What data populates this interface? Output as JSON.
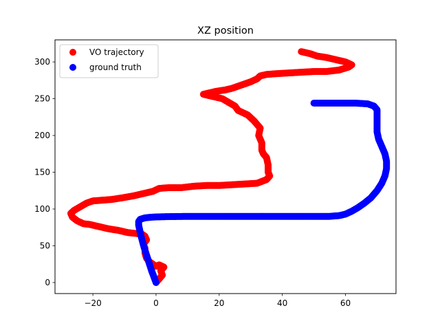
{
  "chart_data": {
    "type": "scatter",
    "title": "XZ position",
    "xlabel": "",
    "ylabel": "",
    "xlim": [
      -32,
      76
    ],
    "ylim": [
      -15,
      330
    ],
    "xticks": [
      -20,
      0,
      20,
      40,
      60
    ],
    "yticks": [
      0,
      50,
      100,
      150,
      200,
      250,
      300
    ],
    "grid": false,
    "legend_position": "top-left",
    "series": [
      {
        "name": "VO trajectory",
        "color": "#ff0000",
        "points": [
          [
            0,
            0
          ],
          [
            1,
            5
          ],
          [
            2,
            10
          ],
          [
            1.5,
            16
          ],
          [
            2.5,
            21
          ],
          [
            1,
            24
          ],
          [
            0,
            22
          ],
          [
            -1,
            25
          ],
          [
            -2,
            28
          ],
          [
            -3,
            33
          ],
          [
            -3.5,
            40
          ],
          [
            -3.5,
            47
          ],
          [
            -4,
            52
          ],
          [
            -3,
            58
          ],
          [
            -3.5,
            63
          ],
          [
            -4.5,
            66
          ],
          [
            -7,
            67
          ],
          [
            -9,
            68
          ],
          [
            -12,
            71
          ],
          [
            -15,
            73
          ],
          [
            -18,
            76
          ],
          [
            -21,
            79
          ],
          [
            -23,
            80
          ],
          [
            -25,
            84
          ],
          [
            -26.5,
            89
          ],
          [
            -27,
            94
          ],
          [
            -26,
            98
          ],
          [
            -24,
            103
          ],
          [
            -22,
            108
          ],
          [
            -20,
            111
          ],
          [
            -17,
            112
          ],
          [
            -14,
            113
          ],
          [
            -11,
            115
          ],
          [
            -7,
            118
          ],
          [
            -4,
            121
          ],
          [
            -1,
            124
          ],
          [
            1,
            128
          ],
          [
            4,
            129
          ],
          [
            8,
            129
          ],
          [
            12,
            131
          ],
          [
            16,
            132
          ],
          [
            20,
            132
          ],
          [
            24,
            133
          ],
          [
            28,
            134
          ],
          [
            32,
            135
          ],
          [
            35,
            140
          ],
          [
            36,
            145
          ],
          [
            35.5,
            150
          ],
          [
            35.5,
            160
          ],
          [
            35,
            170
          ],
          [
            34,
            175
          ],
          [
            33.5,
            180
          ],
          [
            33.5,
            190
          ],
          [
            33,
            195
          ],
          [
            32.5,
            200
          ],
          [
            33,
            210
          ],
          [
            32,
            215
          ],
          [
            31,
            220
          ],
          [
            29,
            228
          ],
          [
            26,
            234
          ],
          [
            25,
            240
          ],
          [
            23,
            245
          ],
          [
            21,
            250
          ],
          [
            19,
            252
          ],
          [
            17,
            254
          ],
          [
            15,
            256
          ],
          [
            17,
            258
          ],
          [
            19,
            260
          ],
          [
            22,
            262
          ],
          [
            24,
            264
          ],
          [
            26,
            267
          ],
          [
            28,
            270
          ],
          [
            30,
            273
          ],
          [
            32,
            277
          ],
          [
            33,
            281
          ],
          [
            35,
            283
          ],
          [
            38,
            284
          ],
          [
            42,
            285
          ],
          [
            46,
            286
          ],
          [
            50,
            287
          ],
          [
            54,
            287
          ],
          [
            58,
            289
          ],
          [
            61,
            293
          ],
          [
            62,
            296
          ],
          [
            60,
            300
          ],
          [
            57,
            303
          ],
          [
            54,
            306
          ],
          [
            51,
            308
          ],
          [
            49,
            311
          ],
          [
            47,
            313
          ],
          [
            46,
            314
          ]
        ]
      },
      {
        "name": "ground truth",
        "color": "#0000ff",
        "points": [
          [
            0,
            0
          ],
          [
            -0.7,
            8
          ],
          [
            -1.4,
            16
          ],
          [
            -2,
            24
          ],
          [
            -2.6,
            32
          ],
          [
            -3.2,
            40
          ],
          [
            -3.8,
            48
          ],
          [
            -4.3,
            56
          ],
          [
            -4.8,
            64
          ],
          [
            -5.2,
            72
          ],
          [
            -5.5,
            78
          ],
          [
            -5.5,
            83
          ],
          [
            -5,
            86
          ],
          [
            -3.5,
            88
          ],
          [
            -1,
            89
          ],
          [
            2,
            89.5
          ],
          [
            10,
            90
          ],
          [
            20,
            90
          ],
          [
            30,
            90
          ],
          [
            40,
            90
          ],
          [
            50,
            90
          ],
          [
            55,
            90
          ],
          [
            58,
            91
          ],
          [
            60,
            93
          ],
          [
            62,
            97
          ],
          [
            64,
            102
          ],
          [
            66,
            108
          ],
          [
            68,
            115
          ],
          [
            70,
            125
          ],
          [
            71.5,
            135
          ],
          [
            72.5,
            145
          ],
          [
            73,
            155
          ],
          [
            73,
            165
          ],
          [
            72.5,
            175
          ],
          [
            71.5,
            185
          ],
          [
            70.5,
            195
          ],
          [
            70,
            205
          ],
          [
            70,
            215
          ],
          [
            70,
            225
          ],
          [
            70,
            235
          ],
          [
            69,
            240
          ],
          [
            67,
            243
          ],
          [
            63,
            244
          ],
          [
            60,
            244
          ],
          [
            55,
            244
          ],
          [
            50,
            244
          ]
        ]
      }
    ]
  }
}
